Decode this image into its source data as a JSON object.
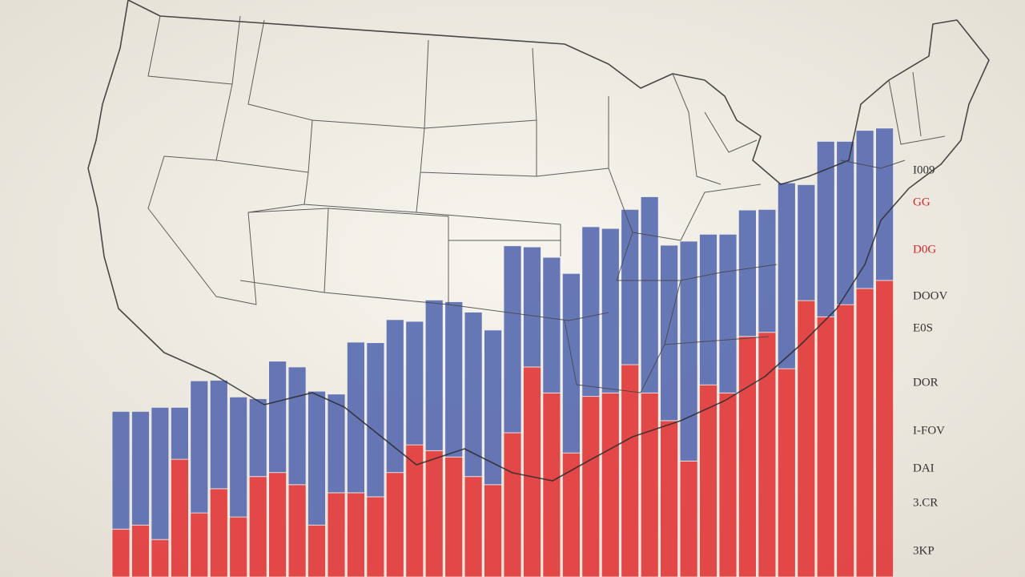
{
  "chart_data": {
    "type": "bar",
    "stacked": true,
    "categories": [
      null,
      null,
      null,
      null,
      null,
      null,
      null,
      null,
      null,
      null,
      null,
      null,
      null,
      null,
      null,
      null,
      null,
      null,
      null,
      null,
      null,
      null,
      null,
      null,
      null,
      null,
      null,
      null,
      null,
      null,
      null,
      null,
      null,
      null,
      null,
      null,
      null,
      null,
      null,
      null
    ],
    "series": [
      {
        "color": "#e23b3b",
        "values": [
          8.3,
          9.0,
          6.5,
          20.4,
          11.1,
          15.3,
          10.4,
          17.4,
          18.1,
          16.0,
          9.0,
          14.6,
          14.6,
          13.9,
          18.1,
          22.9,
          21.9,
          20.8,
          17.4,
          16.0,
          25.0,
          36.4,
          31.9,
          21.5,
          31.3,
          31.9,
          36.8,
          31.9,
          27.1,
          20.1,
          33.3,
          31.9,
          41.7,
          42.4,
          36.1,
          47.9,
          45.1,
          47.2,
          50.0,
          51.4
        ]
      },
      {
        "color": "#5b6db2",
        "values": [
          20.4,
          19.7,
          22.9,
          9.0,
          22.9,
          18.8,
          20.8,
          13.5,
          19.3,
          20.4,
          23.2,
          17.1,
          26.1,
          26.7,
          26.5,
          21.4,
          26.1,
          26.9,
          28.5,
          26.8,
          32.4,
          20.8,
          23.5,
          31.1,
          29.4,
          28.5,
          26.9,
          34.0,
          30.4,
          38.1,
          26.1,
          27.5,
          21.9,
          21.3,
          32.2,
          20.1,
          30.4,
          28.3,
          27.4,
          26.4
        ]
      }
    ],
    "ylim": [
      0,
      100
    ],
    "annotations": [
      {
        "text": "I009",
        "color": "#333333"
      },
      {
        "text": "GG",
        "color": "#d02a2a"
      },
      {
        "text": "D0G",
        "color": "#d02a2a"
      },
      {
        "text": "DOOV",
        "color": "#333333"
      },
      {
        "text": "E0S",
        "color": "#333333"
      },
      {
        "text": "DOR",
        "color": "#333333"
      },
      {
        "text": "I-FOV",
        "color": "#333333"
      },
      {
        "text": "DAI",
        "color": "#333333"
      },
      {
        "text": "3.CR",
        "color": "#333333"
      },
      {
        "text": "3KP",
        "color": "#333333"
      }
    ]
  }
}
